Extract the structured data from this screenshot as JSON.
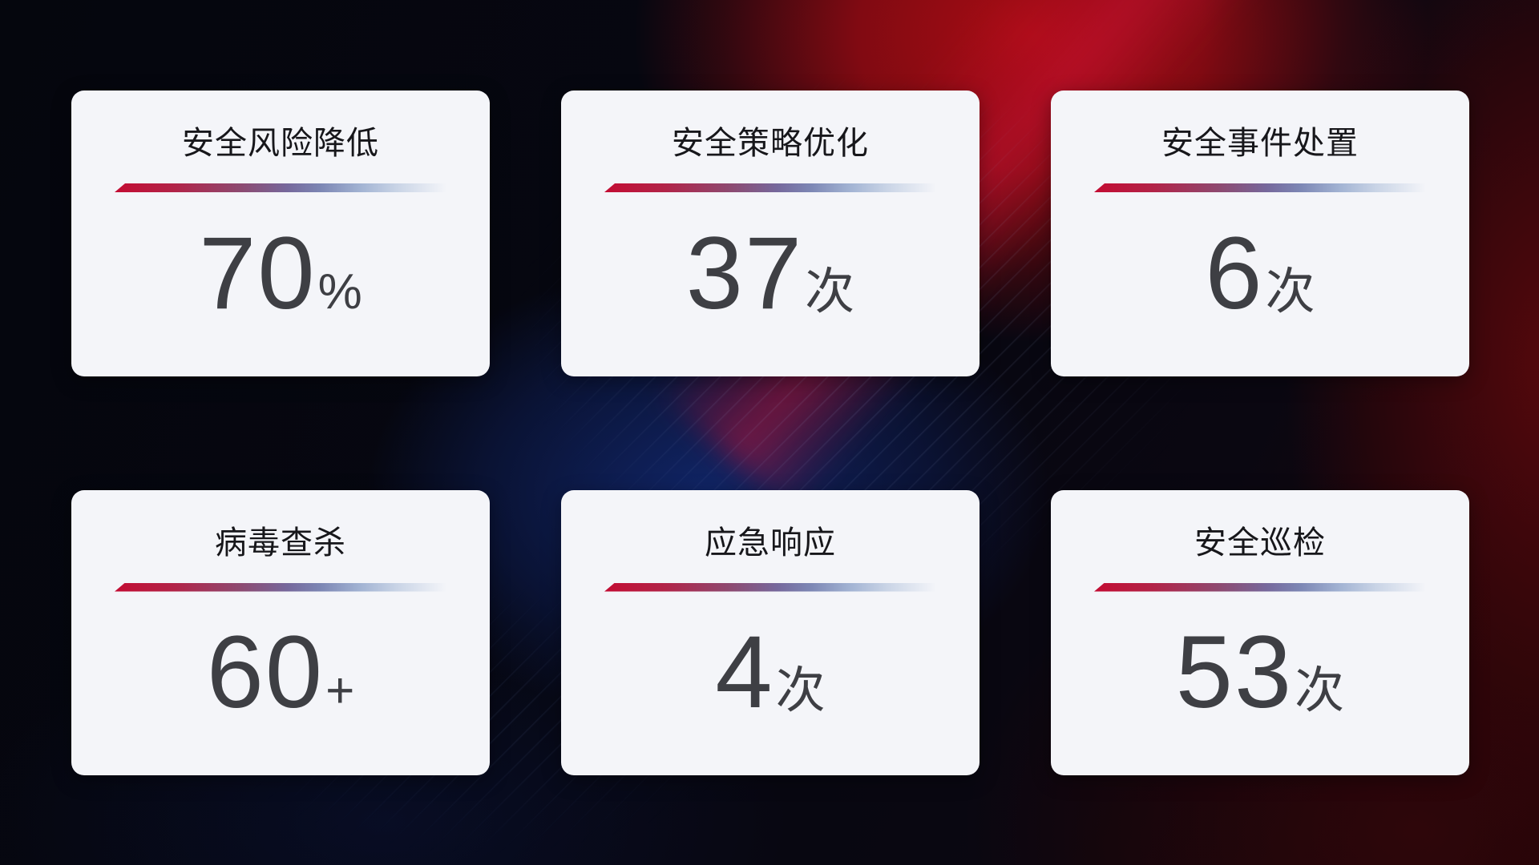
{
  "cards": [
    {
      "title": "安全风险降低",
      "value": "70",
      "unit": "%"
    },
    {
      "title": "安全策略优化",
      "value": "37",
      "unit": "次"
    },
    {
      "title": "安全事件处置",
      "value": "6",
      "unit": "次"
    },
    {
      "title": "病毒查杀",
      "value": "60",
      "unit": "+"
    },
    {
      "title": "应急响应",
      "value": "4",
      "unit": "次"
    },
    {
      "title": "安全巡检",
      "value": "53",
      "unit": "次"
    }
  ],
  "colors": {
    "card_background": "#f4f5f9",
    "title_text": "#17171b",
    "value_text": "#3e3f44",
    "divider_gradient_start": "#c30c33",
    "divider_gradient_mid": "#7c86b4",
    "divider_gradient_end": "#c9d4e6",
    "background_base": "#05060e",
    "background_red_glow": "#a30d13",
    "background_blue_glow": "#10266b"
  }
}
